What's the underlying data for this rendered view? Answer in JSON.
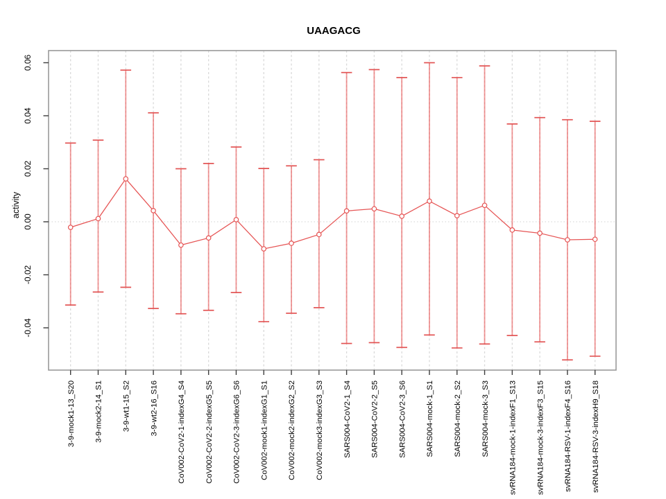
{
  "chart_data": {
    "type": "line",
    "title": "UAAGACG",
    "xlabel": "",
    "ylabel": "activity",
    "legend_position": "none",
    "marker": "open-circle",
    "error_bars": true,
    "grid": "vertical-dashed-per-category",
    "zero_line": true,
    "ylim": [
      -0.055,
      0.0645
    ],
    "yticks": [
      0.06,
      0.04,
      0.02,
      0,
      -0.02,
      -0.04
    ],
    "ytick_labels": [
      "0.06",
      "0.04",
      "0.02",
      "0.00",
      "-0.02",
      "-0.04"
    ],
    "categories": [
      "3-9-mock1-13_S20",
      "3-9-mock2-14_S1",
      "3-9-wt1-15_S2",
      "3-9-wt2-16_S16",
      "CoV002-CoV2-1-indexG4_S4",
      "CoV002-CoV2-2-indexG5_S5",
      "CoV002-CoV2-3-indexG6_S6",
      "CoV002-mock1-indexG1_S1",
      "CoV002-mock2-indexG2_S2",
      "CoV002-mock3-indexG3_S3",
      "SARS004-CoV2-1_S4",
      "SARS004-CoV2-2_S5",
      "SARS004-CoV2-3_S6",
      "SARS004-mock-1_S1",
      "SARS004-mock-2_S2",
      "SARS004-mock-3_S3",
      "svRNA184-mock-1-indexF1_S13",
      "svRNA184-mock-3-indexF3_S15",
      "svRNA184-RSV-1-indexF4_S16",
      "svRNA184-RSV-3-indexH9_S18"
    ],
    "series": [
      {
        "name": "activity",
        "values": [
          -0.0021,
          0.0012,
          0.0162,
          0.0042,
          -0.0088,
          -0.0061,
          0.0008,
          -0.0102,
          -0.0081,
          -0.0048,
          0.0041,
          0.0049,
          0.0021,
          0.0078,
          0.0023,
          0.0062,
          -0.0031,
          -0.0043,
          -0.0068,
          -0.0066
        ],
        "upper": [
          0.0297,
          0.0308,
          0.0572,
          0.0411,
          0.02,
          0.022,
          0.0282,
          0.0201,
          0.0211,
          0.0234,
          0.0563,
          0.0574,
          0.0544,
          0.06,
          0.0544,
          0.0588,
          0.0369,
          0.0393,
          0.0385,
          0.0379
        ],
        "lower": [
          -0.0314,
          -0.0265,
          -0.0247,
          -0.0327,
          -0.0347,
          -0.0334,
          -0.0267,
          -0.0377,
          -0.0345,
          -0.0324,
          -0.0459,
          -0.0456,
          -0.0474,
          -0.0427,
          -0.0476,
          -0.0461,
          -0.0429,
          -0.0453,
          -0.0521,
          -0.0507
        ],
        "caps_present": true
      }
    ],
    "colors": {
      "series": "#e65454",
      "error_bar": "rgba(232,86,86,0.62)",
      "error_cap": "#e25252",
      "marker_fill": "#ffffff",
      "grid": "#d9d9d9",
      "zero_line": "#d9d9d9",
      "box_border": "#999999",
      "tick": "#3c3c3c",
      "text": "#000000"
    }
  }
}
